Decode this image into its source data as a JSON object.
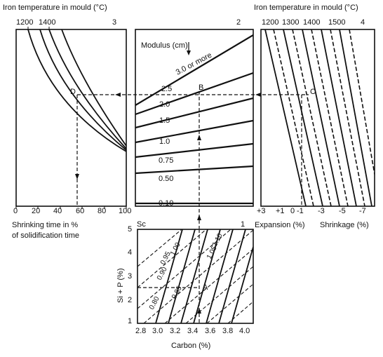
{
  "titles": {
    "left_top": "Iron temperature in mould (°C)",
    "right_top": "Iron temperature in mould (°C)"
  },
  "panel1": {
    "number": "3",
    "top_ticks": [
      "1200",
      "1400"
    ],
    "bottom_ticks": [
      "0",
      "20",
      "40",
      "60",
      "80",
      "100"
    ],
    "xlabel_line1": "Shrinking time in %",
    "xlabel_line2": "of solidification time",
    "point_label": "D"
  },
  "panel2": {
    "number": "2",
    "modulus_label": "Modulus (cm)",
    "curve_labels": [
      "3.0 or more",
      "2.5",
      "2.0",
      "1.5",
      "1.0",
      "0.75",
      "0.50",
      "0.10"
    ],
    "point_label": "B",
    "sc_label": "Sc",
    "sc_value_label": "1"
  },
  "panel3": {
    "number": "4",
    "top_ticks": [
      "1200",
      "1300",
      "1400",
      "1500"
    ],
    "bottom_ticks": [
      "+3",
      "+1",
      "0",
      "-1",
      "-3",
      "-5",
      "-7"
    ],
    "xlabel_left": "Expansion (%)",
    "xlabel_right": "Shrinkage (%)",
    "point_label": "C"
  },
  "panel4": {
    "ylabel": "Si + P (%)",
    "y_ticks": [
      "5",
      "4",
      "3",
      "2",
      "1"
    ],
    "xlabel": "Carbon (%)",
    "x_ticks": [
      "2.8",
      "3.0",
      "3.2",
      "3.4",
      "3.6",
      "3.8",
      "4.0"
    ],
    "sc_labels": [
      "0.80",
      "0.85",
      "0.90",
      "0.95",
      "1.00",
      "1.05",
      "1.10"
    ],
    "point_label": "A"
  }
}
